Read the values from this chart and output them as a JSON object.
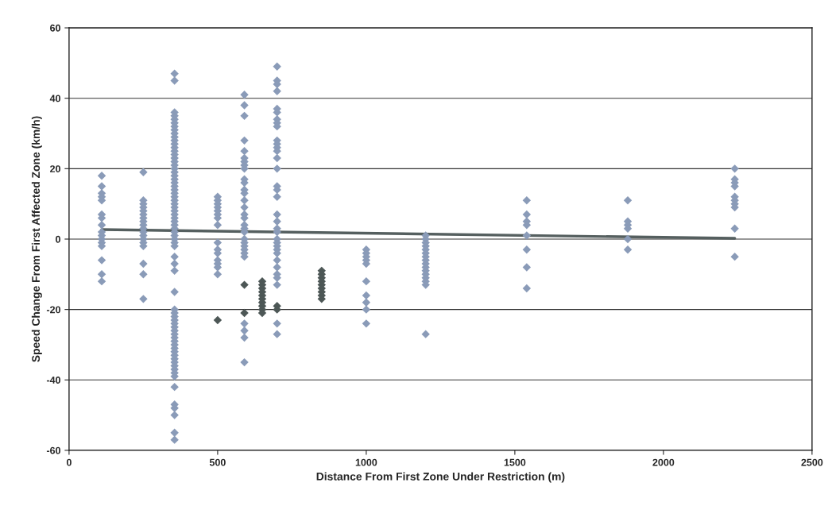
{
  "chart_data": {
    "type": "scatter",
    "xlabel": "Distance From First Zone Under Restriction (m)",
    "ylabel": "Speed Change From First Affected Zone (km/h)",
    "xlim": [
      0,
      2500
    ],
    "xticks": [
      0,
      500,
      1000,
      1500,
      2000,
      2500
    ],
    "ylim": [
      -60,
      60
    ],
    "yticks": [
      -60,
      -40,
      -20,
      0,
      20,
      40,
      60
    ],
    "grid": "y",
    "marker": "diamond",
    "series": [
      {
        "type": "scatter",
        "color": "#8a9bb8",
        "x": [
          110,
          110,
          110,
          110,
          110,
          110,
          110,
          110,
          110,
          110,
          110,
          110,
          110,
          110,
          110,
          110
        ],
        "values": [
          18,
          15,
          13,
          12,
          11,
          7,
          6,
          4,
          2,
          1,
          0,
          -1,
          -2,
          -6,
          -10,
          -12
        ]
      },
      {
        "type": "scatter",
        "color": "#8a9bb8",
        "x": [
          250,
          250,
          250,
          250,
          250,
          250,
          250,
          250,
          250,
          250,
          250,
          250,
          250,
          250,
          250,
          250,
          250,
          250
        ],
        "values": [
          19,
          11,
          10,
          9,
          8,
          7,
          6,
          5,
          4,
          3,
          2,
          1,
          0,
          -1,
          -2,
          -7,
          -10,
          -17
        ]
      },
      {
        "type": "scatter",
        "color": "#8a9bb8",
        "x": [
          355,
          355,
          355,
          355,
          355,
          355,
          355,
          355,
          355,
          355,
          355,
          355,
          355,
          355,
          355,
          355,
          355,
          355,
          355,
          355,
          355,
          355,
          355,
          355,
          355,
          355,
          355,
          355,
          355,
          355,
          355,
          355,
          355,
          355,
          355,
          355,
          355,
          355,
          355,
          355,
          355,
          355,
          355,
          355,
          355,
          355,
          355,
          355,
          355,
          355,
          355,
          355,
          355,
          355,
          355,
          355,
          355,
          355,
          355,
          355,
          355,
          355,
          355,
          355,
          355,
          355,
          355,
          355,
          355,
          355,
          355
        ],
        "values": [
          47,
          45,
          36,
          35,
          34,
          33,
          32,
          31,
          30,
          29,
          28,
          27,
          26,
          25,
          24,
          23,
          22,
          21,
          20,
          19,
          18,
          17,
          16,
          15,
          14,
          13,
          12,
          11,
          10,
          9,
          8,
          7,
          6,
          5,
          4,
          3,
          2,
          1,
          0,
          -1,
          -2,
          -5,
          -7,
          -9,
          -15,
          -20,
          -21,
          -22,
          -23,
          -24,
          -25,
          -26,
          -27,
          -28,
          -29,
          -30,
          -31,
          -32,
          -33,
          -34,
          -35,
          -36,
          -37,
          -38,
          -39,
          -42,
          -47,
          -48,
          -50,
          -55,
          -57
        ]
      },
      {
        "type": "scatter",
        "color": "#8a9bb8",
        "x": [
          500,
          500,
          500,
          500,
          500,
          500,
          500,
          500,
          500,
          500,
          500,
          500,
          500,
          500,
          500
        ],
        "values": [
          12,
          11,
          10,
          9,
          8,
          7,
          6,
          4,
          -1,
          -3,
          -4,
          -6,
          -7,
          -8,
          -10
        ]
      },
      {
        "type": "scatter",
        "color": "#8a9bb8",
        "x": [
          590,
          590,
          590,
          590,
          590,
          590,
          590,
          590,
          590,
          590,
          590,
          590,
          590,
          590,
          590,
          590,
          590,
          590,
          590,
          590,
          590,
          590,
          590,
          590,
          590,
          590,
          590,
          590,
          590,
          590
        ],
        "values": [
          41,
          38,
          35,
          28,
          25,
          23,
          22,
          21,
          20,
          17,
          16,
          14,
          13,
          11,
          9,
          7,
          6,
          4,
          3,
          2,
          0,
          -1,
          -2,
          -3,
          -4,
          -5,
          -24,
          -26,
          -28,
          -35
        ]
      },
      {
        "type": "scatter",
        "color": "#8a9bb8",
        "x": [
          700,
          700,
          700,
          700,
          700,
          700,
          700,
          700,
          700,
          700,
          700,
          700,
          700,
          700,
          700,
          700,
          700,
          700,
          700,
          700,
          700,
          700,
          700,
          700,
          700,
          700,
          700,
          700,
          700,
          700,
          700,
          700,
          700,
          700
        ],
        "values": [
          49,
          45,
          44,
          42,
          37,
          36,
          34,
          33,
          32,
          28,
          27,
          26,
          25,
          23,
          20,
          15,
          14,
          12,
          7,
          5,
          3,
          2,
          0,
          -1,
          -2,
          -3,
          -4,
          -6,
          -8,
          -10,
          -11,
          -13,
          -24,
          -27
        ]
      },
      {
        "type": "scatter",
        "color": "#8a9bb8",
        "x": [
          1000,
          1000,
          1000,
          1000,
          1000,
          1000,
          1000,
          1000,
          1000,
          1000
        ],
        "values": [
          -3,
          -4,
          -5,
          -6,
          -7,
          -12,
          -16,
          -18,
          -20,
          -24
        ]
      },
      {
        "type": "scatter",
        "color": "#8a9bb8",
        "x": [
          1200,
          1200,
          1200,
          1200,
          1200,
          1200,
          1200,
          1200,
          1200,
          1200,
          1200,
          1200,
          1200,
          1200,
          1200,
          1200
        ],
        "values": [
          1,
          0,
          -1,
          -2,
          -3,
          -4,
          -5,
          -6,
          -7,
          -8,
          -9,
          -10,
          -11,
          -12,
          -13,
          -27
        ]
      },
      {
        "type": "scatter",
        "color": "#8a9bb8",
        "x": [
          1540,
          1540,
          1540,
          1540,
          1540,
          1540,
          1540,
          1540
        ],
        "values": [
          11,
          7,
          5,
          4,
          1,
          -3,
          -8,
          -14
        ]
      },
      {
        "type": "scatter",
        "color": "#8a9bb8",
        "x": [
          1880,
          1880,
          1880,
          1880,
          1880,
          1880
        ],
        "values": [
          11,
          5,
          4,
          3,
          0,
          -3
        ]
      },
      {
        "type": "scatter",
        "color": "#8a9bb8",
        "x": [
          2240,
          2240,
          2240,
          2240,
          2240,
          2240,
          2240,
          2240,
          2240,
          2240
        ],
        "values": [
          20,
          17,
          16,
          15,
          12,
          11,
          10,
          9,
          3,
          -5
        ]
      },
      {
        "type": "scatter",
        "color": "#4d5756",
        "x": [
          500,
          590,
          590,
          650,
          650,
          650,
          650,
          650,
          650,
          650,
          650,
          650,
          650,
          700,
          700,
          850,
          850,
          850,
          850,
          850,
          850,
          850,
          850,
          850
        ],
        "values": [
          -23,
          -13,
          -21,
          -12,
          -13,
          -14,
          -15,
          -16,
          -17,
          -18,
          -19,
          -20,
          -21,
          -19,
          -20,
          -9,
          -10,
          -11,
          -12,
          -13,
          -14,
          -15,
          -16,
          -17
        ]
      },
      {
        "type": "line",
        "marker": "none",
        "color": "#555f5f",
        "x": [
          110,
          2240
        ],
        "values": [
          2.7,
          0.2
        ]
      }
    ]
  }
}
